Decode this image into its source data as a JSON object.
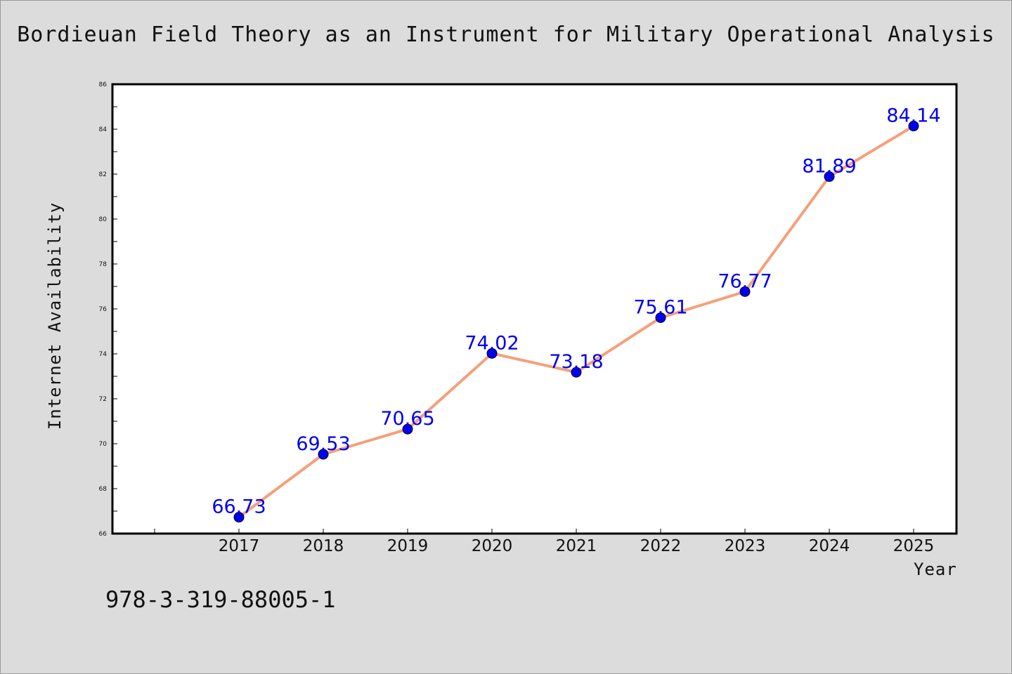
{
  "chart_data": {
    "type": "line",
    "title": "Bordieuan Field Theory as an Instrument for Military Operational Analysis",
    "xlabel": "Year",
    "ylabel": "Internet Availability",
    "categories": [
      "2017",
      "2018",
      "2019",
      "2020",
      "2021",
      "2022",
      "2023",
      "2024",
      "2025"
    ],
    "series": [
      {
        "values": [
          66.73,
          69.53,
          70.65,
          74.02,
          73.18,
          75.61,
          76.77,
          81.89,
          84.14
        ],
        "data_labels": [
          "66.73",
          "69.53",
          "70.65",
          "74.02",
          "73.18",
          "75.61",
          "76.77",
          "81.89",
          "84.14"
        ]
      }
    ],
    "ylim": [
      66,
      86
    ],
    "y_ticks": [
      "66",
      "68",
      "70",
      "72",
      "74",
      "76",
      "78",
      "80",
      "82",
      "84",
      "86"
    ],
    "grid": false,
    "legend": "none",
    "colors": {
      "line": "#f4a07a",
      "marker": "#0000ee",
      "data_label": "#0000ee",
      "background": "#dcdcdc",
      "plot_background": "#ffffff"
    }
  },
  "footer": {
    "isbn": "978-3-319-88005-1"
  }
}
